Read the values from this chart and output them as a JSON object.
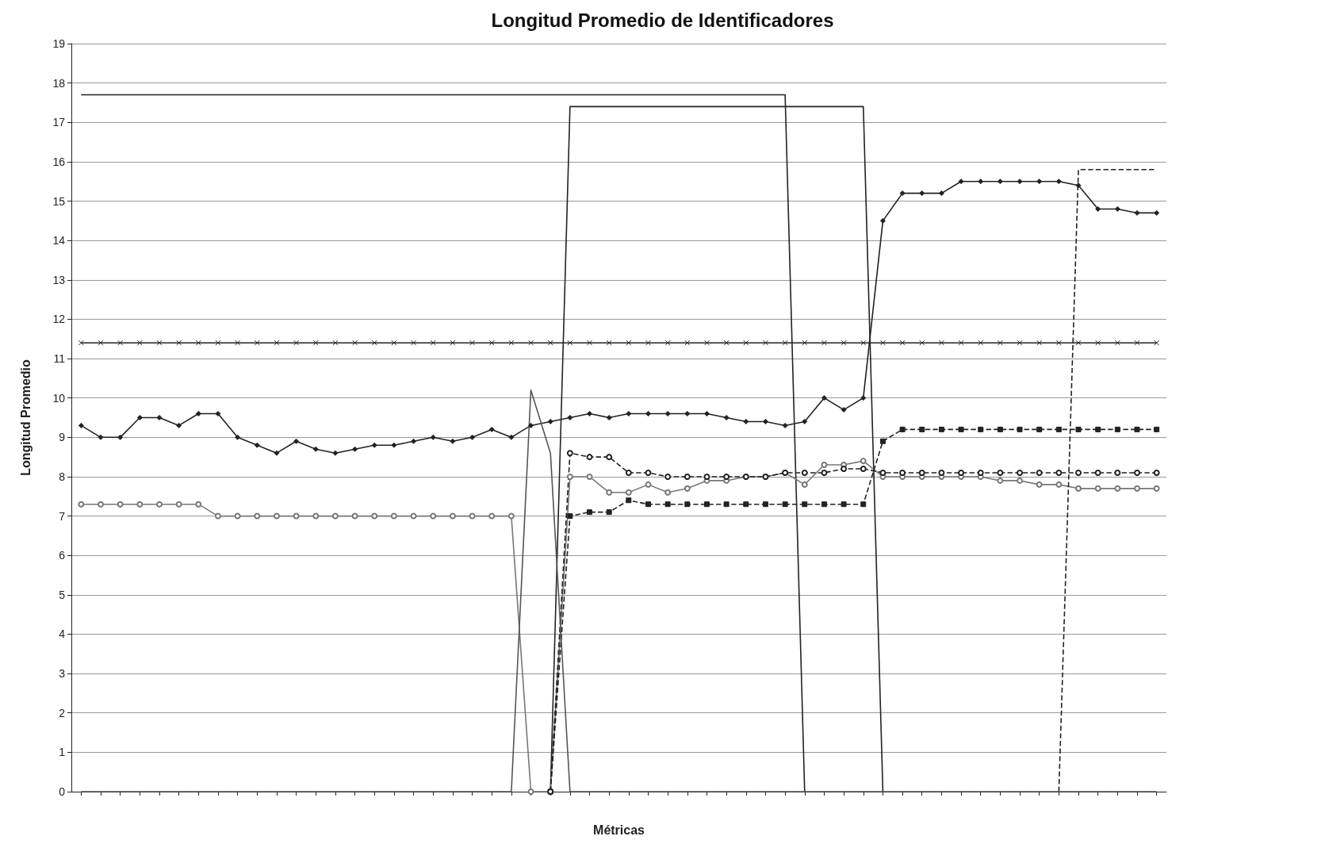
{
  "chart_data": {
    "type": "line",
    "title": "Longitud Promedio de Identificadores",
    "xlabel": "Métricas",
    "ylabel": "Longitud Promedio",
    "categories": [
      null,
      null,
      null,
      null,
      null,
      null,
      null,
      null,
      null,
      null,
      null,
      null,
      null,
      null,
      null,
      null,
      null,
      null,
      null,
      null,
      null,
      null,
      null,
      null,
      null,
      null,
      null,
      null,
      null,
      null,
      null,
      null,
      null,
      null,
      null,
      null,
      null,
      null,
      null,
      null,
      null,
      null,
      null,
      null,
      null,
      null,
      null,
      null,
      null,
      null,
      null,
      null,
      null,
      null,
      null,
      null
    ],
    "ylim": [
      0,
      19
    ],
    "yticks": [
      0,
      1,
      2,
      3,
      4,
      5,
      6,
      7,
      8,
      9,
      10,
      11,
      12,
      13,
      14,
      15,
      16,
      17,
      18,
      19
    ],
    "grid": "y",
    "legend": false,
    "tick_labels": "y",
    "series": [
      {
        "color": "#222222",
        "marker": "none",
        "line_style": "solid",
        "values": [
          17.7,
          17.7,
          17.7,
          17.7,
          17.7,
          17.7,
          17.7,
          17.7,
          17.7,
          17.7,
          17.7,
          17.7,
          17.7,
          17.7,
          17.7,
          17.7,
          17.7,
          17.7,
          17.7,
          17.7,
          17.7,
          17.7,
          17.7,
          17.7,
          17.7,
          17.7,
          17.7,
          17.7,
          17.7,
          17.7,
          17.7,
          17.7,
          17.7,
          17.7,
          17.7,
          17.7,
          17.7,
          0,
          null,
          null,
          null,
          null,
          null,
          null,
          null,
          null,
          null,
          null,
          null,
          null,
          null,
          null,
          null,
          null,
          null,
          null
        ]
      },
      {
        "color": "#222222",
        "marker": "none",
        "line_style": "solid",
        "values": [
          null,
          null,
          null,
          null,
          null,
          null,
          null,
          null,
          null,
          null,
          null,
          null,
          null,
          null,
          null,
          null,
          null,
          null,
          null,
          null,
          null,
          null,
          null,
          null,
          0,
          17.4,
          17.4,
          17.4,
          17.4,
          17.4,
          17.4,
          17.4,
          17.4,
          17.4,
          17.4,
          17.4,
          17.4,
          17.4,
          17.4,
          17.4,
          17.4,
          0,
          null,
          null,
          null,
          null,
          null,
          null,
          null,
          null,
          null,
          null,
          null,
          null,
          null,
          null
        ]
      },
      {
        "color": "#222222",
        "marker": "cross",
        "line_style": "solid",
        "values": [
          11.4,
          11.4,
          11.4,
          11.4,
          11.4,
          11.4,
          11.4,
          11.4,
          11.4,
          11.4,
          11.4,
          11.4,
          11.4,
          11.4,
          11.4,
          11.4,
          11.4,
          11.4,
          11.4,
          11.4,
          11.4,
          11.4,
          11.4,
          11.4,
          11.4,
          11.4,
          11.4,
          11.4,
          11.4,
          11.4,
          11.4,
          11.4,
          11.4,
          11.4,
          11.4,
          11.4,
          11.4,
          11.4,
          11.4,
          11.4,
          11.4,
          11.4,
          11.4,
          11.4,
          11.4,
          11.4,
          11.4,
          11.4,
          11.4,
          11.4,
          11.4,
          11.4,
          11.4,
          11.4,
          11.4,
          11.4
        ]
      },
      {
        "color": "#222222",
        "marker": "diamond",
        "line_style": "solid",
        "values": [
          9.3,
          9.0,
          9.0,
          9.5,
          9.5,
          9.3,
          9.6,
          9.6,
          9.0,
          8.8,
          8.6,
          8.9,
          8.7,
          8.6,
          8.7,
          8.8,
          8.8,
          8.9,
          9.0,
          8.9,
          9.0,
          9.2,
          9.0,
          9.3,
          9.4,
          9.5,
          9.6,
          9.5,
          9.6,
          9.6,
          9.6,
          9.6,
          9.6,
          9.5,
          9.4,
          9.4,
          9.3,
          9.4,
          10.0,
          9.7,
          10.0,
          14.5,
          15.2,
          15.2,
          15.2,
          15.5,
          15.5,
          15.5,
          15.5,
          15.5,
          15.5,
          15.4,
          14.8,
          14.8,
          14.7,
          14.7
        ]
      },
      {
        "color": "#777777",
        "marker": "circle",
        "line_style": "solid",
        "values": [
          7.3,
          7.3,
          7.3,
          7.3,
          7.3,
          7.3,
          7.3,
          7.0,
          7.0,
          7.0,
          7.0,
          7.0,
          7.0,
          7.0,
          7.0,
          7.0,
          7.0,
          7.0,
          7.0,
          7.0,
          7.0,
          7.0,
          7.0,
          0,
          0,
          8.0,
          8.0,
          7.6,
          7.6,
          7.8,
          7.6,
          7.7,
          7.9,
          7.9,
          8.0,
          8.0,
          8.1,
          7.8,
          8.3,
          8.3,
          8.4,
          8.0,
          8.0,
          8.0,
          8.0,
          8.0,
          8.0,
          7.9,
          7.9,
          7.8,
          7.8,
          7.7,
          7.7,
          7.7,
          7.7,
          7.7
        ]
      },
      {
        "color": "#222222",
        "marker": "square",
        "line_style": "dashed",
        "values": [
          null,
          null,
          null,
          null,
          null,
          null,
          null,
          null,
          null,
          null,
          null,
          null,
          null,
          null,
          null,
          null,
          null,
          null,
          null,
          null,
          null,
          null,
          null,
          null,
          0,
          7.0,
          7.1,
          7.1,
          7.4,
          7.3,
          7.3,
          7.3,
          7.3,
          7.3,
          7.3,
          7.3,
          7.3,
          7.3,
          7.3,
          7.3,
          7.3,
          8.9,
          9.2,
          9.2,
          9.2,
          9.2,
          9.2,
          9.2,
          9.2,
          9.2,
          9.2,
          9.2,
          9.2,
          9.2,
          9.2,
          9.2
        ]
      },
      {
        "color": "#222222",
        "marker": "circle",
        "line_style": "dashed",
        "values": [
          null,
          null,
          null,
          null,
          null,
          null,
          null,
          null,
          null,
          null,
          null,
          null,
          null,
          null,
          null,
          null,
          null,
          null,
          null,
          null,
          null,
          null,
          null,
          null,
          0,
          8.6,
          8.5,
          8.5,
          8.1,
          8.1,
          8.0,
          8.0,
          8.0,
          8.0,
          8.0,
          8.0,
          8.1,
          8.1,
          8.1,
          8.2,
          8.2,
          8.1,
          8.1,
          8.1,
          8.1,
          8.1,
          8.1,
          8.1,
          8.1,
          8.1,
          8.1,
          8.1,
          8.1,
          8.1,
          8.1,
          8.1
        ]
      },
      {
        "color": "#222222",
        "marker": "none",
        "line_style": "dashed",
        "values": [
          null,
          null,
          null,
          null,
          null,
          null,
          null,
          null,
          null,
          null,
          null,
          null,
          null,
          null,
          null,
          null,
          null,
          null,
          null,
          null,
          null,
          null,
          null,
          null,
          null,
          null,
          null,
          null,
          null,
          null,
          null,
          null,
          null,
          null,
          null,
          null,
          null,
          null,
          null,
          null,
          null,
          null,
          null,
          null,
          null,
          null,
          null,
          null,
          null,
          null,
          0,
          15.8,
          15.8,
          15.8,
          15.8,
          15.8
        ]
      },
      {
        "color": "#555555",
        "marker": "none",
        "line_style": "solid",
        "values": [
          0,
          0,
          0,
          0,
          0,
          0,
          0,
          0,
          0,
          0,
          0,
          0,
          0,
          0,
          0,
          0,
          0,
          0,
          0,
          0,
          0,
          0,
          0,
          10.2,
          8.6,
          0,
          0,
          0,
          0,
          0,
          0,
          0,
          0,
          0,
          0,
          0,
          0,
          0,
          0,
          0,
          0,
          0,
          0,
          0,
          0,
          0,
          0,
          0,
          0,
          0,
          0,
          0,
          0,
          0,
          0,
          0
        ]
      }
    ]
  }
}
